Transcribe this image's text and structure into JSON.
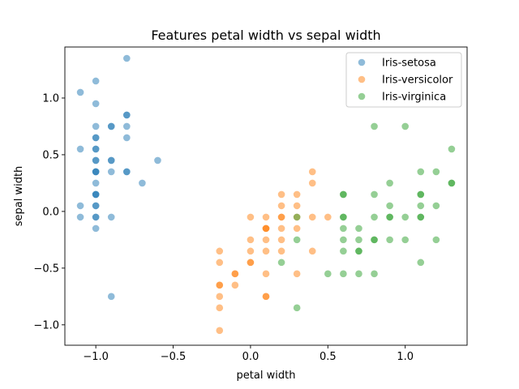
{
  "chart_data": {
    "type": "scatter",
    "title": "Features petal width vs sepal width",
    "xlabel": "petal width",
    "ylabel": "sepal width",
    "xlim": [
      -1.2,
      1.4
    ],
    "ylim": [
      -1.18,
      1.45
    ],
    "xticks": [
      -1.0,
      -0.5,
      0.0,
      0.5,
      1.0
    ],
    "xtick_labels": [
      "−1.0",
      "−0.5",
      "0.0",
      "0.5",
      "1.0"
    ],
    "yticks": [
      -1.0,
      -0.5,
      0.0,
      0.5,
      1.0
    ],
    "ytick_labels": [
      "−1.0",
      "−0.5",
      "0.0",
      "0.5",
      "1.0"
    ],
    "grid": false,
    "legend_position": "top-right",
    "series": [
      {
        "name": "Iris-setosa",
        "color": "#1f77b4",
        "points": [
          [
            -0.8,
            1.35
          ],
          [
            -1.0,
            1.15
          ],
          [
            -1.1,
            1.05
          ],
          [
            -1.0,
            0.95
          ],
          [
            -0.8,
            0.85
          ],
          [
            -0.8,
            0.85
          ],
          [
            -1.0,
            0.75
          ],
          [
            -0.9,
            0.75
          ],
          [
            -0.9,
            0.75
          ],
          [
            -0.8,
            0.75
          ],
          [
            -1.0,
            0.65
          ],
          [
            -1.0,
            0.65
          ],
          [
            -0.8,
            0.65
          ],
          [
            -1.1,
            0.55
          ],
          [
            -1.0,
            0.55
          ],
          [
            -1.0,
            0.55
          ],
          [
            -1.0,
            0.45
          ],
          [
            -1.0,
            0.45
          ],
          [
            -0.9,
            0.45
          ],
          [
            -0.9,
            0.45
          ],
          [
            -0.6,
            0.45
          ],
          [
            -1.0,
            0.35
          ],
          [
            -1.0,
            0.35
          ],
          [
            -1.0,
            0.35
          ],
          [
            -0.9,
            0.35
          ],
          [
            -0.8,
            0.35
          ],
          [
            -0.8,
            0.35
          ],
          [
            -1.0,
            0.25
          ],
          [
            -0.7,
            0.25
          ],
          [
            -1.0,
            0.15
          ],
          [
            -1.0,
            0.15
          ],
          [
            -1.0,
            0.15
          ],
          [
            -1.1,
            0.05
          ],
          [
            -1.0,
            0.05
          ],
          [
            -1.0,
            0.05
          ],
          [
            -1.1,
            -0.05
          ],
          [
            -1.0,
            -0.05
          ],
          [
            -1.0,
            -0.05
          ],
          [
            -0.9,
            -0.05
          ],
          [
            -1.0,
            -0.15
          ],
          [
            -0.9,
            -0.75
          ]
        ]
      },
      {
        "name": "Iris-versicolor",
        "color": "#ff7f0e",
        "points": [
          [
            0.4,
            0.35
          ],
          [
            0.4,
            0.25
          ],
          [
            0.2,
            0.15
          ],
          [
            0.3,
            0.15
          ],
          [
            0.2,
            0.05
          ],
          [
            0.3,
            0.05
          ],
          [
            0.0,
            -0.05
          ],
          [
            0.1,
            -0.05
          ],
          [
            0.2,
            -0.05
          ],
          [
            0.2,
            -0.05
          ],
          [
            0.3,
            -0.05
          ],
          [
            0.4,
            -0.05
          ],
          [
            0.5,
            -0.05
          ],
          [
            0.1,
            -0.15
          ],
          [
            0.1,
            -0.15
          ],
          [
            0.1,
            -0.15
          ],
          [
            0.2,
            -0.15
          ],
          [
            0.3,
            -0.15
          ],
          [
            0.0,
            -0.25
          ],
          [
            0.1,
            -0.25
          ],
          [
            0.2,
            -0.25
          ],
          [
            0.0,
            -0.35
          ],
          [
            0.1,
            -0.35
          ],
          [
            0.2,
            -0.35
          ],
          [
            0.4,
            -0.35
          ],
          [
            -0.2,
            -0.35
          ],
          [
            -0.2,
            -0.45
          ],
          [
            0.0,
            -0.45
          ],
          [
            0.0,
            -0.45
          ],
          [
            -0.1,
            -0.55
          ],
          [
            -0.1,
            -0.55
          ],
          [
            0.1,
            -0.55
          ],
          [
            0.3,
            -0.55
          ],
          [
            -0.2,
            -0.65
          ],
          [
            -0.2,
            -0.65
          ],
          [
            -0.1,
            -0.65
          ],
          [
            -0.2,
            -0.75
          ],
          [
            0.1,
            -0.75
          ],
          [
            0.1,
            -0.75
          ],
          [
            -0.2,
            -0.85
          ],
          [
            -0.2,
            -1.05
          ]
        ]
      },
      {
        "name": "Iris-virginica",
        "color": "#2ca02c",
        "points": [
          [
            0.8,
            0.75
          ],
          [
            1.0,
            0.75
          ],
          [
            1.3,
            0.55
          ],
          [
            1.1,
            0.35
          ],
          [
            1.2,
            0.35
          ],
          [
            0.9,
            0.25
          ],
          [
            1.3,
            0.25
          ],
          [
            1.3,
            0.25
          ],
          [
            0.6,
            0.15
          ],
          [
            0.6,
            0.15
          ],
          [
            0.8,
            0.15
          ],
          [
            1.1,
            0.15
          ],
          [
            1.1,
            0.15
          ],
          [
            0.9,
            0.05
          ],
          [
            1.1,
            0.05
          ],
          [
            1.2,
            0.05
          ],
          [
            0.3,
            -0.05
          ],
          [
            0.6,
            -0.05
          ],
          [
            0.6,
            -0.05
          ],
          [
            0.8,
            -0.05
          ],
          [
            0.9,
            -0.05
          ],
          [
            0.9,
            -0.05
          ],
          [
            1.0,
            -0.05
          ],
          [
            1.1,
            -0.05
          ],
          [
            1.1,
            -0.05
          ],
          [
            0.6,
            -0.15
          ],
          [
            0.7,
            -0.15
          ],
          [
            0.3,
            -0.25
          ],
          [
            0.6,
            -0.25
          ],
          [
            0.7,
            -0.25
          ],
          [
            0.8,
            -0.25
          ],
          [
            0.8,
            -0.25
          ],
          [
            0.9,
            -0.25
          ],
          [
            1.0,
            -0.25
          ],
          [
            1.2,
            -0.25
          ],
          [
            0.6,
            -0.35
          ],
          [
            0.7,
            -0.35
          ],
          [
            0.7,
            -0.35
          ],
          [
            0.2,
            -0.45
          ],
          [
            1.1,
            -0.45
          ],
          [
            0.5,
            -0.55
          ],
          [
            0.6,
            -0.55
          ],
          [
            0.7,
            -0.55
          ],
          [
            0.8,
            -0.55
          ],
          [
            0.3,
            -0.85
          ]
        ]
      }
    ]
  }
}
